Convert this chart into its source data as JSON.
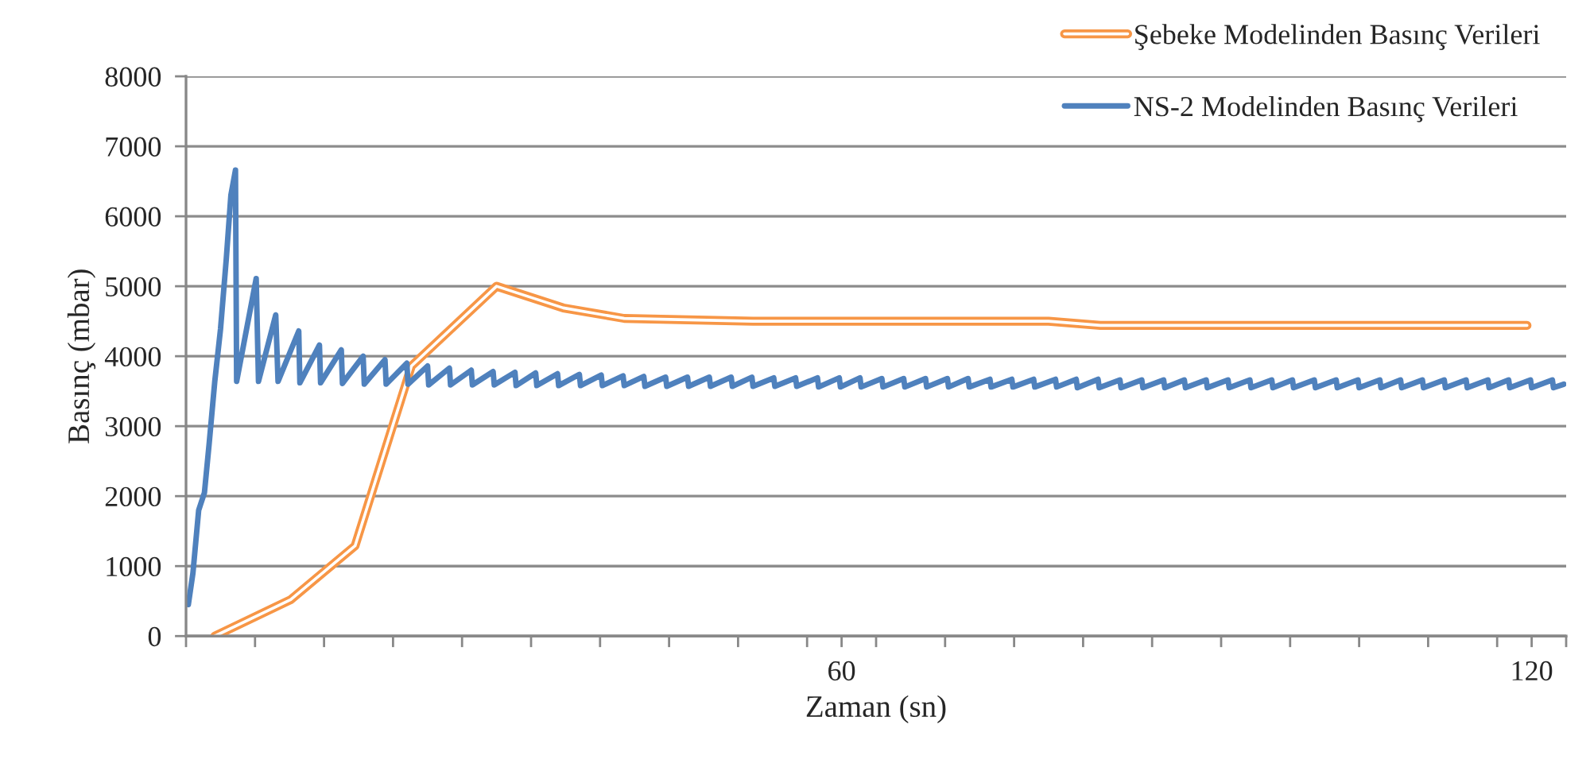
{
  "chart_data": {
    "type": "line",
    "xlabel": "Zaman (sn)",
    "ylabel": "Basınç (mbar)",
    "xlim": [
      3,
      123
    ],
    "xticks": [
      {
        "value": 3,
        "label": null
      },
      {
        "value": 9,
        "label": null
      },
      {
        "value": 15,
        "label": null
      },
      {
        "value": 21,
        "label": null
      },
      {
        "value": 27,
        "label": null
      },
      {
        "value": 33,
        "label": null
      },
      {
        "value": 39,
        "label": null
      },
      {
        "value": 45,
        "label": null
      },
      {
        "value": 51,
        "label": null
      },
      {
        "value": 57,
        "label": null
      },
      60,
      {
        "value": 63,
        "label": null
      },
      {
        "value": 69,
        "label": null
      },
      {
        "value": 75,
        "label": null
      },
      {
        "value": 81,
        "label": null
      },
      {
        "value": 87,
        "label": null
      },
      {
        "value": 93,
        "label": null
      },
      {
        "value": 99,
        "label": null
      },
      {
        "value": 105,
        "label": null
      },
      {
        "value": 111,
        "label": null
      },
      {
        "value": 117,
        "label": null
      },
      120,
      {
        "value": 123,
        "label": null
      }
    ],
    "ylim": [
      0,
      8000
    ],
    "yticks": [
      0,
      1000,
      2000,
      3000,
      4000,
      5000,
      6000,
      7000,
      8000
    ],
    "grid": "y",
    "legend": "top right",
    "marker": "none",
    "line_style": "solid",
    "series": [
      {
        "name": "Şebeke Modelinden Basınç Verileri",
        "color": "#f79646",
        "x": [
          5.5,
          12.1,
          17.7,
          22.6,
          30.0,
          35.8,
          41.1,
          52.3,
          78.0,
          82.5,
          119.6
        ],
        "values": [
          0,
          520,
          1290,
          3860,
          5000,
          4690,
          4540,
          4500,
          4500,
          4440,
          4440
        ]
      },
      {
        "name": "NS-2 Modelinden Basınç Verileri",
        "color": "#4f81bd",
        "x": [
          3.2,
          3.6,
          4.1,
          4.6,
          5.0,
          5.5,
          6.0,
          6.5,
          6.9,
          7.3,
          7.4,
          9.1,
          9.3,
          10.8,
          11.0,
          12.8,
          12.9,
          14.6,
          14.7,
          16.5,
          16.6,
          18.4,
          18.5,
          20.3,
          20.4,
          22.2,
          22.3,
          24.0,
          24.1,
          25.9,
          26.0,
          27.8,
          27.9,
          29.7,
          29.8,
          31.6,
          31.7,
          33.4,
          33.5,
          35.3,
          35.4,
          37.2,
          37.3,
          39.1,
          39.2,
          41.0,
          41.1,
          42.8,
          42.9,
          44.7,
          44.8,
          46.6,
          46.7,
          48.5,
          48.6,
          50.4,
          50.5,
          52.2,
          52.3,
          54.1,
          54.2,
          56.0,
          56.1,
          57.9,
          58.0,
          59.8,
          59.9,
          61.6,
          61.7,
          63.5,
          63.6,
          65.4,
          65.5,
          67.3,
          67.4,
          69.2,
          69.3,
          71.0,
          71.1,
          72.9,
          73.0,
          74.8,
          74.9,
          76.7,
          76.8,
          78.6,
          78.7,
          80.4,
          80.5,
          82.3,
          82.4,
          84.2,
          84.3,
          86.1,
          86.2,
          88.0,
          88.1,
          89.8,
          89.9,
          91.7,
          91.8,
          93.6,
          93.7,
          95.5,
          95.6,
          97.4,
          97.5,
          99.2,
          99.3,
          101.1,
          101.2,
          103.0,
          103.1,
          104.9,
          105.0,
          106.8,
          106.9,
          108.6,
          108.7,
          110.5,
          110.6,
          112.4,
          112.5,
          114.3,
          114.4,
          116.2,
          116.3,
          118.0,
          118.1,
          119.9,
          120.0,
          121.8,
          121.9,
          122.8
        ],
        "values": [
          450,
          900,
          1800,
          2050,
          2730,
          3640,
          4390,
          5390,
          6300,
          6660,
          3640,
          5110,
          3640,
          4590,
          3640,
          4360,
          3620,
          4160,
          3620,
          4090,
          3610,
          4000,
          3600,
          3950,
          3600,
          3900,
          3600,
          3860,
          3590,
          3830,
          3590,
          3800,
          3590,
          3780,
          3590,
          3770,
          3580,
          3760,
          3580,
          3750,
          3580,
          3740,
          3580,
          3730,
          3580,
          3720,
          3580,
          3710,
          3570,
          3700,
          3570,
          3700,
          3570,
          3700,
          3570,
          3700,
          3570,
          3700,
          3570,
          3690,
          3570,
          3690,
          3570,
          3690,
          3560,
          3690,
          3560,
          3690,
          3560,
          3680,
          3560,
          3680,
          3560,
          3680,
          3560,
          3680,
          3560,
          3680,
          3560,
          3670,
          3560,
          3670,
          3560,
          3670,
          3560,
          3670,
          3560,
          3670,
          3550,
          3670,
          3550,
          3660,
          3550,
          3660,
          3550,
          3660,
          3550,
          3660,
          3550,
          3660,
          3550,
          3660,
          3550,
          3660,
          3550,
          3660,
          3550,
          3660,
          3550,
          3660,
          3550,
          3660,
          3550,
          3660,
          3550,
          3660,
          3550,
          3660,
          3550,
          3660,
          3550,
          3660,
          3550,
          3660,
          3550,
          3660,
          3550,
          3660,
          3550,
          3660,
          3550,
          3660,
          3550,
          3600
        ]
      }
    ]
  }
}
